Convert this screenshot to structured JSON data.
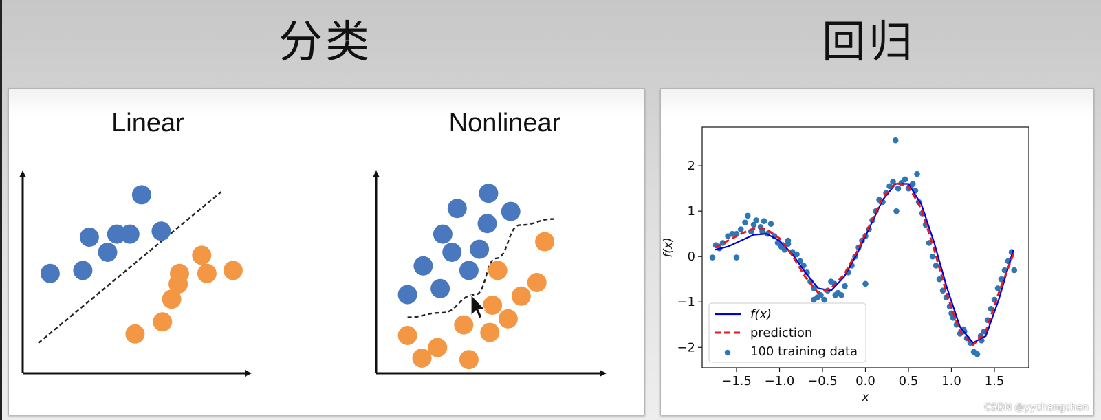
{
  "headings": {
    "classification": "分类",
    "regression": "回归"
  },
  "colors": {
    "blue": "#4a78be",
    "orange": "#f39744",
    "fx_line": "#0000dd",
    "prediction": "#e41a1c",
    "train": "#2e77b4"
  },
  "watermark": "CSDN @yychengchen",
  "chart_data": [
    {
      "type": "scatter",
      "title": "Linear",
      "axes": "unlabeled arrows",
      "boundary": "straight dashed line",
      "series": [
        {
          "name": "class-blue",
          "x": [
            1.05,
            2.3,
            2.55,
            3.25,
            3.6,
            4.1,
            4.55,
            5.3
          ],
          "y": [
            3.3,
            3.4,
            4.5,
            4.0,
            4.6,
            4.6,
            5.9,
            4.7
          ]
        },
        {
          "name": "class-orange",
          "x": [
            4.3,
            5.35,
            5.7,
            5.95,
            6.0,
            6.85,
            7.05,
            8.05
          ],
          "y": [
            1.3,
            1.7,
            2.45,
            2.95,
            3.3,
            3.9,
            3.3,
            3.4
          ]
        }
      ],
      "decision_boundary": {
        "x": [
          0.6,
          7.6
        ],
        "y": [
          1.0,
          6.0
        ]
      }
    },
    {
      "type": "scatter",
      "title": "Nonlinear",
      "axes": "unlabeled arrows",
      "boundary": "curved dashed line",
      "series": [
        {
          "name": "class-blue",
          "x": [
            1.2,
            1.8,
            2.45,
            2.55,
            2.9,
            3.1,
            3.55,
            3.95,
            4.25,
            4.3,
            5.15
          ],
          "y": [
            2.6,
            3.55,
            2.8,
            4.6,
            4.0,
            5.45,
            3.4,
            4.1,
            4.95,
            5.95,
            5.35
          ]
        },
        {
          "name": "class-orange",
          "x": [
            1.2,
            1.75,
            2.35,
            3.35,
            3.55,
            4.35,
            4.45,
            4.65,
            5.05,
            5.55,
            6.15,
            6.45
          ],
          "y": [
            1.25,
            0.5,
            0.85,
            1.6,
            0.45,
            1.35,
            2.25,
            3.4,
            1.8,
            2.55,
            3.0,
            4.35
          ]
        }
      ],
      "decision_boundary": {
        "x": [
          1.2,
          2.5,
          3.8,
          4.6,
          5.5,
          6.8
        ],
        "y": [
          1.85,
          2.0,
          2.6,
          3.8,
          4.9,
          5.1
        ]
      }
    },
    {
      "type": "line",
      "title": "",
      "xlabel": "x",
      "ylabel": "f(x)",
      "xlim": [
        -1.9,
        1.9
      ],
      "ylim": [
        -2.45,
        2.85
      ],
      "xticks": [
        -1.5,
        -1.0,
        -0.5,
        0.0,
        0.5,
        1.0,
        1.5
      ],
      "yticks": [
        -2,
        -1,
        0,
        1,
        2
      ],
      "xtick_labels": [
        "−1.5",
        "−1.0",
        "−0.5",
        "0.0",
        "0.5",
        "1.0",
        "1.5"
      ],
      "ytick_labels": [
        "−2",
        "−1",
        "0",
        "1",
        "2"
      ],
      "legend_position": "lower-left",
      "series": [
        {
          "name": "f(x)",
          "style": "solid",
          "x": [
            -1.75,
            -1.6,
            -1.45,
            -1.3,
            -1.15,
            -1.0,
            -0.85,
            -0.7,
            -0.55,
            -0.4,
            -0.25,
            -0.1,
            0.05,
            0.2,
            0.35,
            0.5,
            0.65,
            0.8,
            0.95,
            1.1,
            1.25,
            1.4,
            1.55,
            1.72
          ],
          "y": [
            0.15,
            0.22,
            0.35,
            0.48,
            0.5,
            0.35,
            0.05,
            -0.35,
            -0.7,
            -0.75,
            -0.45,
            0.05,
            0.65,
            1.25,
            1.6,
            1.6,
            1.15,
            0.3,
            -0.7,
            -1.55,
            -1.9,
            -1.75,
            -0.95,
            0.15
          ]
        },
        {
          "name": "prediction",
          "style": "dashed",
          "x": [
            -1.75,
            -1.6,
            -1.45,
            -1.3,
            -1.15,
            -1.0,
            -0.85,
            -0.7,
            -0.55,
            -0.4,
            -0.25,
            -0.1,
            0.05,
            0.2,
            0.35,
            0.5,
            0.65,
            0.8,
            0.95,
            1.1,
            1.25,
            1.4,
            1.55,
            1.72
          ],
          "y": [
            0.2,
            0.35,
            0.5,
            0.62,
            0.6,
            0.4,
            0.02,
            -0.45,
            -0.8,
            -0.7,
            -0.4,
            0.1,
            0.7,
            1.3,
            1.62,
            1.55,
            1.05,
            0.15,
            -0.85,
            -1.65,
            -1.95,
            -1.65,
            -0.8,
            0.05
          ]
        },
        {
          "name": "100 training data",
          "style": "points",
          "x": [
            -1.78,
            -1.74,
            -1.7,
            -1.66,
            -1.6,
            -1.55,
            -1.5,
            -1.45,
            -1.4,
            -1.37,
            -1.33,
            -1.3,
            -1.27,
            -1.22,
            -1.18,
            -1.14,
            -1.1,
            -1.06,
            -1.02,
            -0.98,
            -0.94,
            -0.9,
            -0.85,
            -0.8,
            -0.76,
            -0.72,
            -0.68,
            -0.64,
            -0.6,
            -0.56,
            -0.52,
            -0.48,
            -0.44,
            -0.4,
            -0.36,
            -0.32,
            -0.28,
            -0.24,
            -0.2,
            -0.16,
            -0.12,
            -0.08,
            -0.04,
            0.0,
            0.04,
            0.08,
            0.12,
            0.16,
            0.2,
            0.24,
            0.28,
            0.32,
            0.35,
            0.38,
            0.42,
            0.46,
            0.5,
            0.54,
            0.58,
            0.62,
            0.66,
            0.7,
            0.74,
            0.78,
            0.82,
            0.86,
            0.9,
            0.94,
            0.98,
            1.02,
            1.06,
            1.1,
            1.14,
            1.18,
            1.22,
            1.26,
            1.3,
            1.34,
            1.38,
            1.42,
            1.46,
            1.5,
            1.54,
            1.58,
            1.62,
            1.66,
            1.7,
            1.73,
            -1.5,
            -0.9,
            -0.35,
            0.0,
            0.55,
            1.0,
            1.35,
            0.36,
            -1.2,
            -0.6,
            0.6,
            1.15
          ],
          "y": [
            -0.02,
            0.25,
            0.18,
            0.3,
            0.45,
            0.5,
            -0.02,
            0.6,
            0.75,
            0.9,
            0.55,
            0.7,
            0.8,
            0.65,
            0.78,
            0.5,
            0.72,
            0.45,
            0.3,
            0.22,
            0.15,
            0.28,
            0.1,
            0.05,
            -0.1,
            -0.2,
            -0.35,
            -0.55,
            -0.7,
            -0.9,
            -0.85,
            -0.95,
            -0.75,
            -0.55,
            -0.6,
            -0.8,
            -0.85,
            -0.65,
            -0.35,
            -0.2,
            0.0,
            0.2,
            0.35,
            0.45,
            0.6,
            0.8,
            1.0,
            1.25,
            1.2,
            1.4,
            1.55,
            1.65,
            2.56,
            1.5,
            1.62,
            1.7,
            1.5,
            1.58,
            1.45,
            1.2,
            0.95,
            0.7,
            0.3,
            0.0,
            -0.2,
            -0.5,
            -0.75,
            -0.9,
            -1.1,
            -1.35,
            -1.5,
            -1.7,
            -1.6,
            -1.8,
            -1.9,
            -2.1,
            -2.15,
            -1.75,
            -1.65,
            -1.4,
            -1.15,
            -0.95,
            -0.7,
            -0.5,
            -0.3,
            -0.1,
            0.1,
            -0.3,
            0.5,
            0.35,
            -0.85,
            -0.6,
            1.6,
            -1.25,
            -1.85,
            1.0,
            0.55,
            -0.95,
            1.82,
            -1.65
          ]
        }
      ]
    }
  ]
}
